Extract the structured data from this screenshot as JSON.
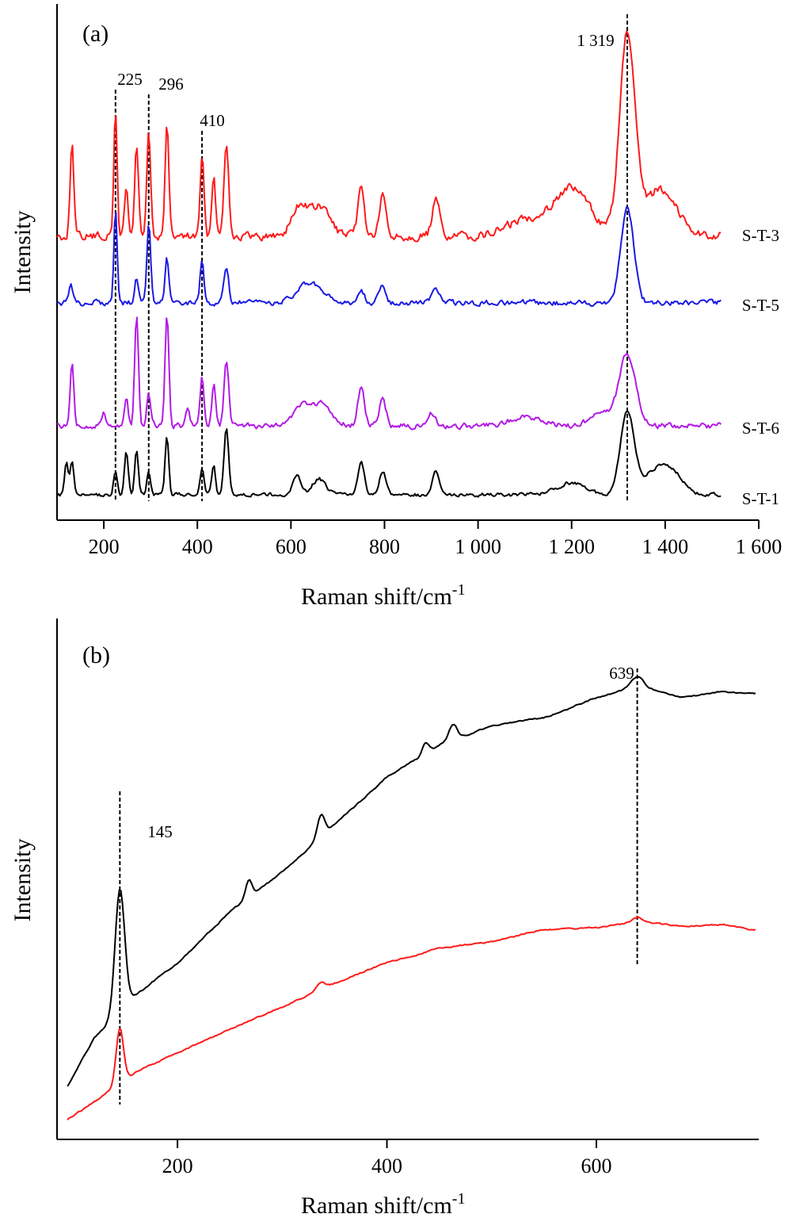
{
  "chart_data": [
    {
      "type": "line",
      "panel": "(a)",
      "xlabel": "Raman shift/cm",
      "xlabel_sup": "-1",
      "ylabel": "Intensity",
      "xlim": [
        100,
        1600
      ],
      "x_ticks": [
        {
          "value": 200,
          "label": "200"
        },
        {
          "value": 400,
          "label": "400"
        },
        {
          "value": 600,
          "label": "600"
        },
        {
          "value": 800,
          "label": "800"
        },
        {
          "value": 1000,
          "label": "1 000"
        },
        {
          "value": 1200,
          "label": "1 200"
        },
        {
          "value": 1400,
          "label": "1 400"
        },
        {
          "value": 1600,
          "label": "1 600"
        }
      ],
      "annotations": [
        {
          "x": 225,
          "label": "225"
        },
        {
          "x": 296,
          "label": "296"
        },
        {
          "x": 410,
          "label": "410"
        },
        {
          "x": 1319,
          "label": "1 319"
        }
      ],
      "series": [
        {
          "name": "S-T-3",
          "color": "#ff1a1a"
        },
        {
          "name": "S-T-5",
          "color": "#1a1ae6"
        },
        {
          "name": "S-T-6",
          "color": "#b31ae6"
        },
        {
          "name": "S-T-1",
          "color": "#000000"
        }
      ]
    },
    {
      "type": "line",
      "panel": "(b)",
      "xlabel": "Raman shift/cm",
      "xlabel_sup": "-1",
      "ylabel": "Intensity",
      "xlim": [
        85,
        755
      ],
      "x_ticks": [
        {
          "value": 200,
          "label": "200"
        },
        {
          "value": 400,
          "label": "400"
        },
        {
          "value": 600,
          "label": "600"
        }
      ],
      "annotations": [
        {
          "x": 145,
          "label": "145"
        },
        {
          "x": 639,
          "label": "639"
        }
      ],
      "series": [
        {
          "color": "#000000"
        },
        {
          "color": "#ff1a1a"
        }
      ]
    }
  ]
}
